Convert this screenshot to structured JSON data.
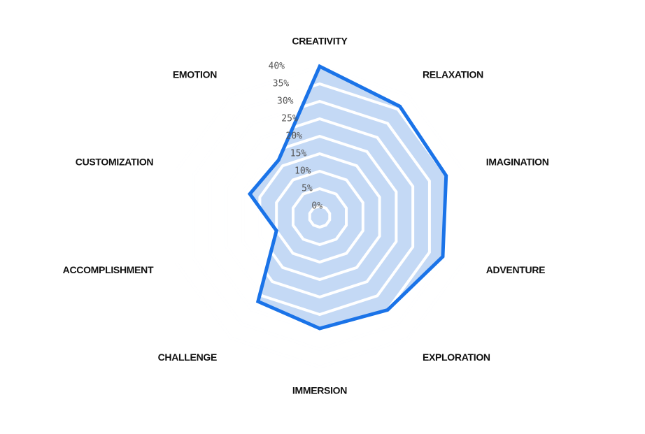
{
  "chart_data": {
    "type": "radar",
    "categories": [
      "CREATIVITY",
      "RELAXATION",
      "IMAGINATION",
      "ADVENTURE",
      "EXPLORATION",
      "IMMERSION",
      "CHALLENGE",
      "ACCOMPLISHMENT",
      "CUSTOMIZATION",
      "EMOTION"
    ],
    "values": [
      40,
      36,
      35,
      34,
      30,
      29,
      27,
      10,
      18,
      17
    ],
    "color": "#1a73e8",
    "fill_color": "#c4d9f5",
    "rlim": [
      0,
      40
    ],
    "rticks": [
      {
        "value": 0,
        "label": "0%"
      },
      {
        "value": 5,
        "label": "5%"
      },
      {
        "value": 10,
        "label": "10%"
      },
      {
        "value": 15,
        "label": "15%"
      },
      {
        "value": 20,
        "label": "20%"
      },
      {
        "value": 25,
        "label": "25%"
      },
      {
        "value": 30,
        "label": "30%"
      },
      {
        "value": 35,
        "label": "35%"
      },
      {
        "value": 40,
        "label": "40%"
      }
    ],
    "grid": true
  }
}
